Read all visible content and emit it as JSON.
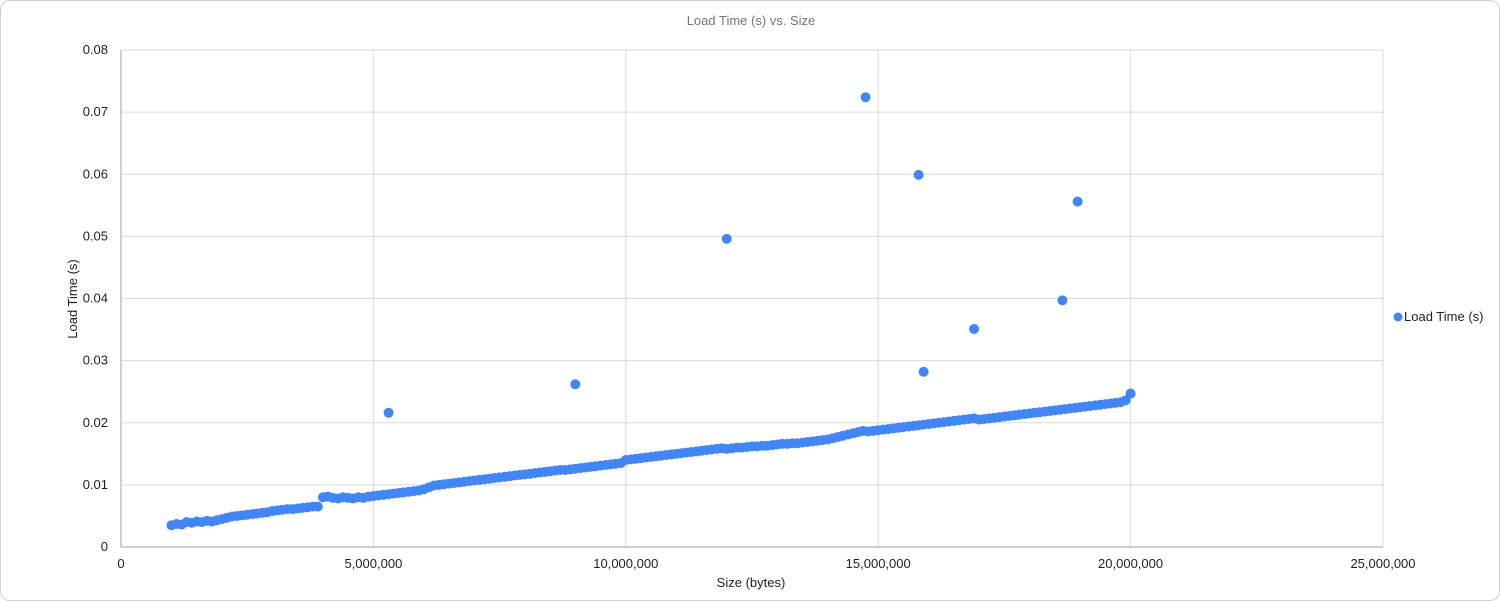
{
  "chart_data": {
    "type": "scatter",
    "title": "Load Time (s) vs. Size",
    "xlabel": "Size (bytes)",
    "ylabel": "Load Time (s)",
    "xlim": [
      0,
      25000000
    ],
    "ylim": [
      0,
      0.08
    ],
    "x_ticks": [
      0,
      5000000,
      10000000,
      15000000,
      20000000,
      25000000
    ],
    "y_ticks": [
      0,
      0.01,
      0.02,
      0.03,
      0.04,
      0.05,
      0.06,
      0.07,
      0.08
    ],
    "x_tick_labels": [
      "0",
      "5,000,000",
      "10,000,000",
      "15,000,000",
      "20,000,000",
      "25,000,000"
    ],
    "y_tick_labels": [
      "0",
      "0.01",
      "0.02",
      "0.03",
      "0.04",
      "0.05",
      "0.06",
      "0.07",
      "0.08"
    ],
    "grid": true,
    "legend_position": "right",
    "series": [
      {
        "name": "Load Time (s)",
        "color": "#4285f4",
        "points": [
          [
            1000000,
            0.0035
          ],
          [
            1100000,
            0.0037
          ],
          [
            1200000,
            0.0036
          ],
          [
            1300000,
            0.004
          ],
          [
            1400000,
            0.0039
          ],
          [
            1500000,
            0.0041
          ],
          [
            1600000,
            0.004
          ],
          [
            1700000,
            0.0042
          ],
          [
            1800000,
            0.0041
          ],
          [
            1900000,
            0.0043
          ],
          [
            2000000,
            0.0045
          ],
          [
            2100000,
            0.0047
          ],
          [
            2200000,
            0.0049
          ],
          [
            2300000,
            0.005
          ],
          [
            2400000,
            0.0051
          ],
          [
            2500000,
            0.0052
          ],
          [
            2600000,
            0.0053
          ],
          [
            2700000,
            0.0054
          ],
          [
            2800000,
            0.0055
          ],
          [
            2900000,
            0.0056
          ],
          [
            3000000,
            0.0058
          ],
          [
            3100000,
            0.0059
          ],
          [
            3200000,
            0.006
          ],
          [
            3300000,
            0.0061
          ],
          [
            3400000,
            0.0061
          ],
          [
            3500000,
            0.0062
          ],
          [
            3600000,
            0.0063
          ],
          [
            3700000,
            0.0064
          ],
          [
            3800000,
            0.0065
          ],
          [
            3900000,
            0.0065
          ],
          [
            4000000,
            0.008
          ],
          [
            4100000,
            0.0081
          ],
          [
            4200000,
            0.0079
          ],
          [
            4300000,
            0.0078
          ],
          [
            4400000,
            0.008
          ],
          [
            4500000,
            0.0079
          ],
          [
            4600000,
            0.0078
          ],
          [
            4700000,
            0.008
          ],
          [
            4800000,
            0.0079
          ],
          [
            4900000,
            0.0081
          ],
          [
            5000000,
            0.0082
          ],
          [
            5100000,
            0.0083
          ],
          [
            5200000,
            0.0084
          ],
          [
            5300000,
            0.0085
          ],
          [
            5400000,
            0.0086
          ],
          [
            5500000,
            0.0087
          ],
          [
            5600000,
            0.0088
          ],
          [
            5700000,
            0.0089
          ],
          [
            5800000,
            0.009
          ],
          [
            5900000,
            0.0091
          ],
          [
            6000000,
            0.0093
          ],
          [
            6100000,
            0.0096
          ],
          [
            6200000,
            0.0099
          ],
          [
            6300000,
            0.01
          ],
          [
            6400000,
            0.0101
          ],
          [
            6500000,
            0.0102
          ],
          [
            6600000,
            0.0103
          ],
          [
            6700000,
            0.0104
          ],
          [
            6800000,
            0.0105
          ],
          [
            6900000,
            0.0106
          ],
          [
            7000000,
            0.0107
          ],
          [
            7100000,
            0.0108
          ],
          [
            7200000,
            0.0109
          ],
          [
            7300000,
            0.011
          ],
          [
            7400000,
            0.0111
          ],
          [
            7500000,
            0.0112
          ],
          [
            7600000,
            0.0113
          ],
          [
            7700000,
            0.0114
          ],
          [
            7800000,
            0.0115
          ],
          [
            7900000,
            0.0116
          ],
          [
            8000000,
            0.0117
          ],
          [
            8100000,
            0.0118
          ],
          [
            8200000,
            0.0119
          ],
          [
            8300000,
            0.012
          ],
          [
            8400000,
            0.0121
          ],
          [
            8500000,
            0.0122
          ],
          [
            8600000,
            0.0123
          ],
          [
            8700000,
            0.0124
          ],
          [
            8800000,
            0.0124
          ],
          [
            8900000,
            0.0125
          ],
          [
            9000000,
            0.0126
          ],
          [
            9100000,
            0.0127
          ],
          [
            9200000,
            0.0128
          ],
          [
            9300000,
            0.0129
          ],
          [
            9400000,
            0.013
          ],
          [
            9500000,
            0.0131
          ],
          [
            9600000,
            0.0132
          ],
          [
            9700000,
            0.0133
          ],
          [
            9800000,
            0.0134
          ],
          [
            9900000,
            0.0135
          ],
          [
            10000000,
            0.014
          ],
          [
            10100000,
            0.0141
          ],
          [
            10200000,
            0.0142
          ],
          [
            10300000,
            0.0143
          ],
          [
            10400000,
            0.0144
          ],
          [
            10500000,
            0.0145
          ],
          [
            10600000,
            0.0146
          ],
          [
            10700000,
            0.0147
          ],
          [
            10800000,
            0.0148
          ],
          [
            10900000,
            0.0149
          ],
          [
            11000000,
            0.015
          ],
          [
            11100000,
            0.0151
          ],
          [
            11200000,
            0.0152
          ],
          [
            11300000,
            0.0153
          ],
          [
            11400000,
            0.0154
          ],
          [
            11500000,
            0.0155
          ],
          [
            11600000,
            0.0156
          ],
          [
            11700000,
            0.0157
          ],
          [
            11800000,
            0.0158
          ],
          [
            11900000,
            0.0159
          ],
          [
            12000000,
            0.0158
          ],
          [
            12100000,
            0.0159
          ],
          [
            12200000,
            0.016
          ],
          [
            12300000,
            0.016
          ],
          [
            12400000,
            0.0161
          ],
          [
            12500000,
            0.0162
          ],
          [
            12600000,
            0.0162
          ],
          [
            12700000,
            0.0163
          ],
          [
            12800000,
            0.0163
          ],
          [
            12900000,
            0.0164
          ],
          [
            13000000,
            0.0165
          ],
          [
            13100000,
            0.0166
          ],
          [
            13200000,
            0.0166
          ],
          [
            13300000,
            0.0167
          ],
          [
            13400000,
            0.0167
          ],
          [
            13500000,
            0.0168
          ],
          [
            13600000,
            0.0169
          ],
          [
            13700000,
            0.017
          ],
          [
            13800000,
            0.0171
          ],
          [
            13900000,
            0.0172
          ],
          [
            14000000,
            0.0173
          ],
          [
            14100000,
            0.0175
          ],
          [
            14200000,
            0.0177
          ],
          [
            14300000,
            0.0179
          ],
          [
            14400000,
            0.0181
          ],
          [
            14500000,
            0.0183
          ],
          [
            14600000,
            0.0185
          ],
          [
            14700000,
            0.0187
          ],
          [
            14800000,
            0.0186
          ],
          [
            14900000,
            0.0187
          ],
          [
            15000000,
            0.0188
          ],
          [
            15100000,
            0.0189
          ],
          [
            15200000,
            0.019
          ],
          [
            15300000,
            0.0191
          ],
          [
            15400000,
            0.0192
          ],
          [
            15500000,
            0.0193
          ],
          [
            15600000,
            0.0194
          ],
          [
            15700000,
            0.0195
          ],
          [
            15800000,
            0.0196
          ],
          [
            15900000,
            0.0197
          ],
          [
            16000000,
            0.0198
          ],
          [
            16100000,
            0.0199
          ],
          [
            16200000,
            0.02
          ],
          [
            16300000,
            0.0201
          ],
          [
            16400000,
            0.0202
          ],
          [
            16500000,
            0.0203
          ],
          [
            16600000,
            0.0204
          ],
          [
            16700000,
            0.0205
          ],
          [
            16800000,
            0.0206
          ],
          [
            16900000,
            0.0207
          ],
          [
            17000000,
            0.0205
          ],
          [
            17100000,
            0.0206
          ],
          [
            17200000,
            0.0207
          ],
          [
            17300000,
            0.0208
          ],
          [
            17400000,
            0.0209
          ],
          [
            17500000,
            0.021
          ],
          [
            17600000,
            0.0211
          ],
          [
            17700000,
            0.0212
          ],
          [
            17800000,
            0.0213
          ],
          [
            17900000,
            0.0214
          ],
          [
            18000000,
            0.0215
          ],
          [
            18100000,
            0.0216
          ],
          [
            18200000,
            0.0217
          ],
          [
            18300000,
            0.0218
          ],
          [
            18400000,
            0.0219
          ],
          [
            18500000,
            0.022
          ],
          [
            18600000,
            0.0221
          ],
          [
            18700000,
            0.0222
          ],
          [
            18800000,
            0.0223
          ],
          [
            18900000,
            0.0224
          ],
          [
            19000000,
            0.0225
          ],
          [
            19100000,
            0.0226
          ],
          [
            19200000,
            0.0227
          ],
          [
            19300000,
            0.0228
          ],
          [
            19400000,
            0.0229
          ],
          [
            19500000,
            0.023
          ],
          [
            19600000,
            0.0231
          ],
          [
            19700000,
            0.0232
          ],
          [
            19800000,
            0.0233
          ],
          [
            19900000,
            0.0236
          ],
          [
            20000000,
            0.0247
          ],
          [
            5300000,
            0.0216
          ],
          [
            9000000,
            0.0262
          ],
          [
            12000000,
            0.0496
          ],
          [
            14750000,
            0.0724
          ],
          [
            15800000,
            0.0599
          ],
          [
            15900000,
            0.0282
          ],
          [
            16900000,
            0.0351
          ],
          [
            18650000,
            0.0397
          ],
          [
            18950000,
            0.0556
          ]
        ]
      }
    ]
  }
}
